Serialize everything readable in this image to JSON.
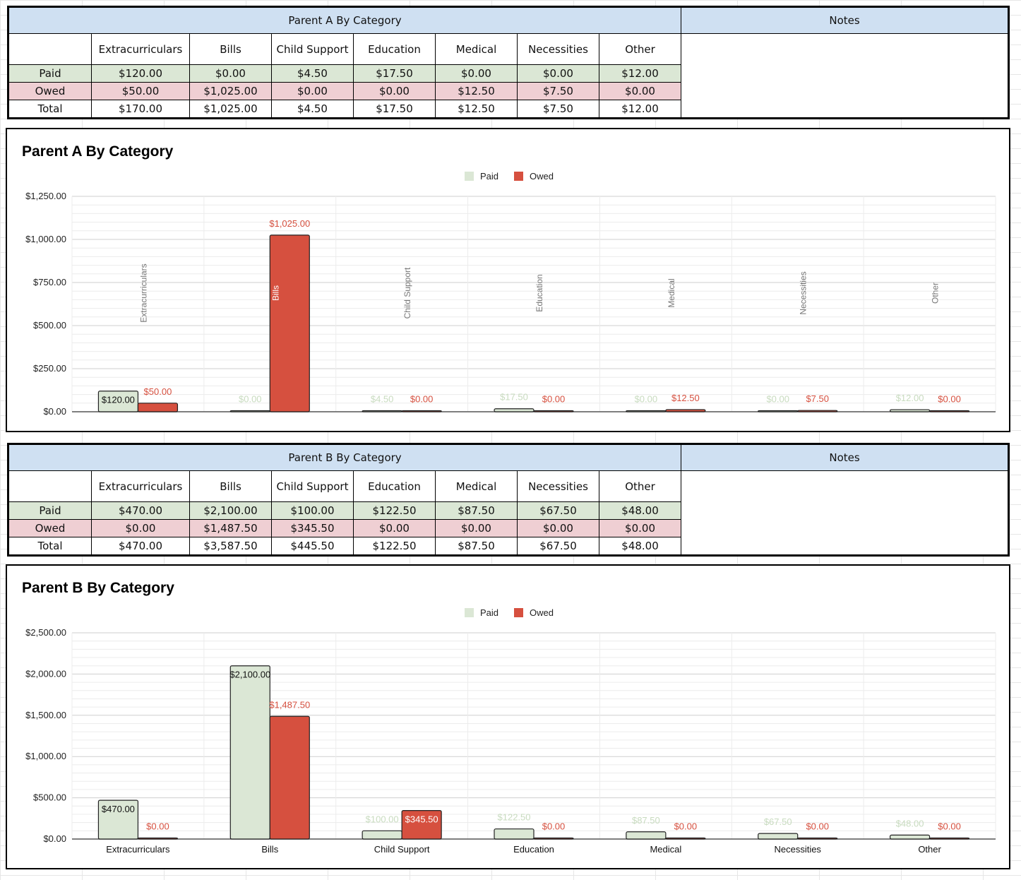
{
  "colors": {
    "paid": "#dbe7d5",
    "owed": "#d6503f",
    "header_bg": "#cfe0f2",
    "paid_row": "#dbe7d5",
    "owed_row": "#efcfd3"
  },
  "parent_a": {
    "title": "Parent A By Category",
    "notes_label": "Notes",
    "headers": [
      "Extracurriculars",
      "Bills",
      "Child Support",
      "Education",
      "Medical",
      "Necessities",
      "Other"
    ],
    "rows": [
      {
        "label": "Paid",
        "values": [
          "$120.00",
          "$0.00",
          "$4.50",
          "$17.50",
          "$0.00",
          "$0.00",
          "$12.00"
        ]
      },
      {
        "label": "Owed",
        "values": [
          "$50.00",
          "$1,025.00",
          "$0.00",
          "$0.00",
          "$12.50",
          "$7.50",
          "$0.00"
        ]
      },
      {
        "label": "Total",
        "values": [
          "$170.00",
          "$1,025.00",
          "$4.50",
          "$17.50",
          "$12.50",
          "$7.50",
          "$12.00"
        ]
      }
    ]
  },
  "parent_b": {
    "title": "Parent B By Category",
    "notes_label": "Notes",
    "headers": [
      "Extracurriculars",
      "Bills",
      "Child Support",
      "Education",
      "Medical",
      "Necessities",
      "Other"
    ],
    "rows": [
      {
        "label": "Paid",
        "values": [
          "$470.00",
          "$2,100.00",
          "$100.00",
          "$122.50",
          "$87.50",
          "$67.50",
          "$48.00"
        ]
      },
      {
        "label": "Owed",
        "values": [
          "$0.00",
          "$1,487.50",
          "$345.50",
          "$0.00",
          "$0.00",
          "$0.00",
          "$0.00"
        ]
      },
      {
        "label": "Total",
        "values": [
          "$470.00",
          "$3,587.50",
          "$445.50",
          "$122.50",
          "$87.50",
          "$67.50",
          "$48.00"
        ]
      }
    ]
  },
  "chart_data": [
    {
      "type": "bar",
      "title": "Parent A By Category",
      "categories": [
        "Extracurriculars",
        "Bills",
        "Child Support",
        "Education",
        "Medical",
        "Necessities",
        "Other"
      ],
      "category_labels": "rotated-inside",
      "series": [
        {
          "name": "Paid",
          "values": [
            120,
            0,
            4.5,
            17.5,
            0,
            0,
            12
          ],
          "labels": [
            "$120.00",
            "$0.00",
            "$4.50",
            "$17.50",
            "$0.00",
            "$0.00",
            "$12.00"
          ]
        },
        {
          "name": "Owed",
          "values": [
            50,
            1025,
            0,
            0,
            12.5,
            7.5,
            0
          ],
          "labels": [
            "$50.00",
            "$1,025.00",
            "$0.00",
            "$0.00",
            "$12.50",
            "$7.50",
            "$0.00"
          ]
        }
      ],
      "yticks": [
        "$0.00",
        "$250.00",
        "$500.00",
        "$750.00",
        "$1,000.00",
        "$1,250.00"
      ],
      "ylim": [
        0,
        1250
      ],
      "legend": "top-center",
      "grid": true
    },
    {
      "type": "bar",
      "title": "Parent B By Category",
      "categories": [
        "Extracurriculars",
        "Bills",
        "Child Support",
        "Education",
        "Medical",
        "Necessities",
        "Other"
      ],
      "category_labels": "below-axis",
      "series": [
        {
          "name": "Paid",
          "values": [
            470,
            2100,
            100,
            122.5,
            87.5,
            67.5,
            48
          ],
          "labels": [
            "$470.00",
            "$2,100.00",
            "$100.00",
            "$122.50",
            "$87.50",
            "$67.50",
            "$48.00"
          ]
        },
        {
          "name": "Owed",
          "values": [
            0,
            1487.5,
            345.5,
            0,
            0,
            0,
            0
          ],
          "labels": [
            "$0.00",
            "$1,487.50",
            "$345.50",
            "$0.00",
            "$0.00",
            "$0.00",
            "$0.00"
          ]
        }
      ],
      "yticks": [
        "$0.00",
        "$500.00",
        "$1,000.00",
        "$1,500.00",
        "$2,000.00",
        "$2,500.00"
      ],
      "ylim": [
        0,
        2500
      ],
      "legend": "top-center",
      "grid": true
    }
  ]
}
